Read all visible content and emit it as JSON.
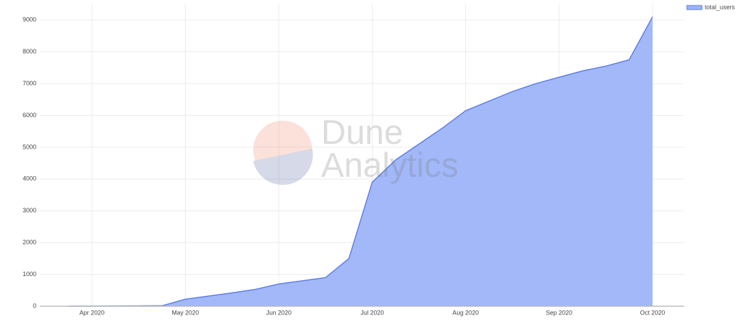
{
  "chart_data": {
    "type": "area",
    "watermark": [
      "Dune",
      "Analytics"
    ],
    "categories": [
      null,
      "Apr 2020",
      null,
      null,
      null,
      "May 2020",
      null,
      null,
      null,
      "Jun 2020",
      null,
      null,
      null,
      "Jul 2020",
      null,
      null,
      null,
      "Aug 2020",
      null,
      null,
      null,
      "Sep 2020",
      null,
      null,
      null,
      "Oct 2020"
    ],
    "series": [
      {
        "name": "total_users",
        "color": "#9db4f8",
        "values": [
          0,
          5,
          8,
          10,
          15,
          220,
          320,
          420,
          530,
          700,
          800,
          900,
          1500,
          3900,
          4600,
          5100,
          5600,
          6150,
          6450,
          6750,
          7000,
          7200,
          7400,
          7550,
          7750,
          9100
        ]
      }
    ],
    "ylim": [
      0,
      9500
    ],
    "yticks": [
      0,
      1000,
      2000,
      3000,
      4000,
      5000,
      6000,
      7000,
      8000,
      9000
    ],
    "grid": true,
    "legend": "top-right"
  }
}
